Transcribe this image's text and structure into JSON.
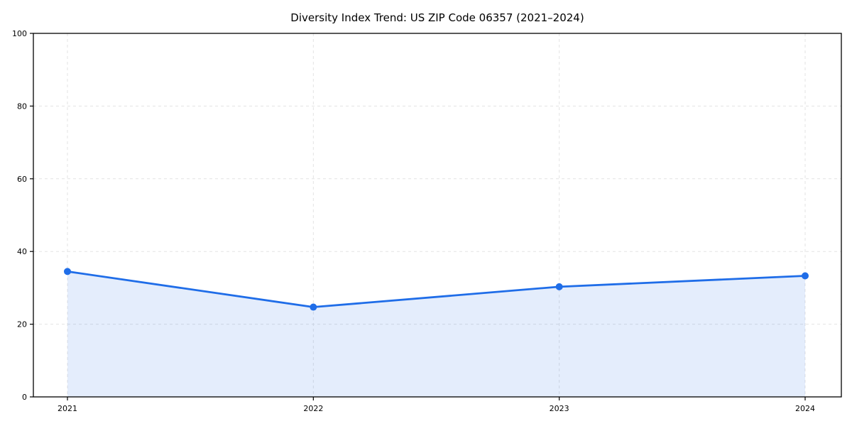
{
  "chart_data": {
    "type": "area",
    "title": "Diversity Index Trend: US ZIP Code 06357 (2021–2024)",
    "categories": [
      "2021",
      "2022",
      "2023",
      "2024"
    ],
    "values": [
      34.5,
      24.7,
      30.3,
      33.3
    ],
    "series_name": "Diversity Index",
    "xlabel": "",
    "ylabel": "",
    "ylim": [
      0,
      100
    ],
    "yticks": [
      0,
      20,
      40,
      60,
      80,
      100
    ],
    "grid": "dashed-both-axes",
    "legend_position": "none",
    "marker": "circle",
    "colors": {
      "line": "#1f6de8",
      "marker": "#1f6de8",
      "fill": "rgba(31, 109, 232, 0.12)",
      "grid": "#e3e3e3",
      "spine": "#000000",
      "text": "#000000",
      "background": "#ffffff"
    }
  }
}
